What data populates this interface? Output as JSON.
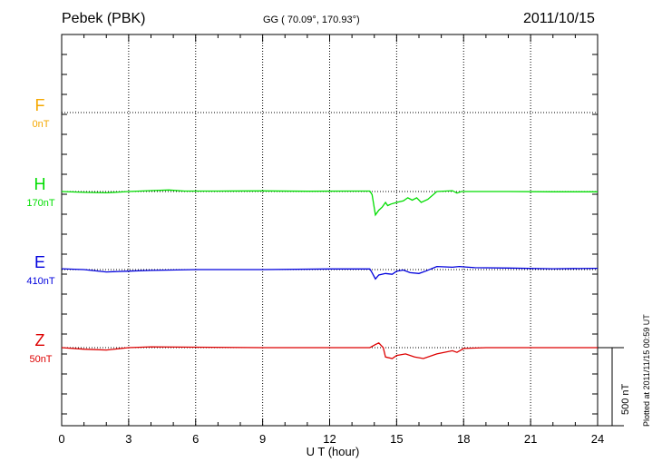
{
  "header": {
    "station": "Pebek (PBK)",
    "coordinates": "GG ( 70.09°, 170.93°)",
    "date": "2011/10/15",
    "plotted": "Plotted at 2011/11/15 00:59 UT"
  },
  "chart_data": {
    "type": "line",
    "xlabel": "U T (hour)",
    "xlim": [
      0,
      24
    ],
    "xticks": [
      0,
      3,
      6,
      9,
      12,
      15,
      18,
      21,
      24
    ],
    "scale_bar": {
      "label": "500 nT",
      "nT": 500
    },
    "grid": true,
    "series": [
      {
        "name": "F",
        "baseline_label": "0nT",
        "color": "#f5a800",
        "points": []
      },
      {
        "name": "H",
        "baseline_label": "170nT",
        "color": "#00dd00",
        "points": [
          [
            0,
            0
          ],
          [
            1,
            -5
          ],
          [
            2,
            -8
          ],
          [
            3,
            0
          ],
          [
            4,
            6
          ],
          [
            4.8,
            10
          ],
          [
            5.5,
            3
          ],
          [
            7,
            3
          ],
          [
            9,
            4
          ],
          [
            11,
            2
          ],
          [
            13,
            3
          ],
          [
            13.8,
            3
          ],
          [
            13.9,
            -20
          ],
          [
            14.05,
            -150
          ],
          [
            14.2,
            -120
          ],
          [
            14.35,
            -100
          ],
          [
            14.5,
            -70
          ],
          [
            14.6,
            -90
          ],
          [
            14.75,
            -80
          ],
          [
            15,
            -70
          ],
          [
            15.3,
            -60
          ],
          [
            15.5,
            -40
          ],
          [
            15.7,
            -55
          ],
          [
            15.9,
            -40
          ],
          [
            16.1,
            -70
          ],
          [
            16.4,
            -50
          ],
          [
            16.8,
            0
          ],
          [
            17.5,
            5
          ],
          [
            17.7,
            -10
          ],
          [
            17.9,
            0
          ],
          [
            18.5,
            0
          ],
          [
            20,
            0
          ],
          [
            22,
            -2
          ],
          [
            24,
            -2
          ]
        ]
      },
      {
        "name": "E",
        "baseline_label": "410nT",
        "color": "#0000dd",
        "points": [
          [
            0,
            5
          ],
          [
            1,
            0
          ],
          [
            2,
            -15
          ],
          [
            3,
            -10
          ],
          [
            4,
            -5
          ],
          [
            6,
            0
          ],
          [
            9,
            0
          ],
          [
            12,
            4
          ],
          [
            13.8,
            4
          ],
          [
            13.9,
            -20
          ],
          [
            14.05,
            -60
          ],
          [
            14.2,
            -35
          ],
          [
            14.5,
            -25
          ],
          [
            14.8,
            -30
          ],
          [
            15,
            -10
          ],
          [
            15.3,
            -3
          ],
          [
            15.6,
            -20
          ],
          [
            16,
            -25
          ],
          [
            16.3,
            -10
          ],
          [
            16.8,
            20
          ],
          [
            17.5,
            15
          ],
          [
            17.8,
            20
          ],
          [
            18.5,
            12
          ],
          [
            20,
            10
          ],
          [
            22,
            5
          ],
          [
            24,
            8
          ]
        ]
      },
      {
        "name": "Z",
        "baseline_label": "50nT",
        "color": "#dd0000",
        "points": [
          [
            0,
            0
          ],
          [
            1,
            -10
          ],
          [
            2,
            -15
          ],
          [
            3,
            0
          ],
          [
            4,
            5
          ],
          [
            6,
            3
          ],
          [
            9,
            0
          ],
          [
            12,
            0
          ],
          [
            13.8,
            0
          ],
          [
            14.05,
            20
          ],
          [
            14.2,
            30
          ],
          [
            14.4,
            0
          ],
          [
            14.5,
            -60
          ],
          [
            14.8,
            -70
          ],
          [
            15,
            -50
          ],
          [
            15.4,
            -40
          ],
          [
            15.8,
            -60
          ],
          [
            16.2,
            -70
          ],
          [
            16.8,
            -40
          ],
          [
            17.5,
            -20
          ],
          [
            17.7,
            -30
          ],
          [
            18,
            -5
          ],
          [
            19,
            0
          ],
          [
            21,
            0
          ],
          [
            24,
            0
          ]
        ]
      }
    ]
  }
}
